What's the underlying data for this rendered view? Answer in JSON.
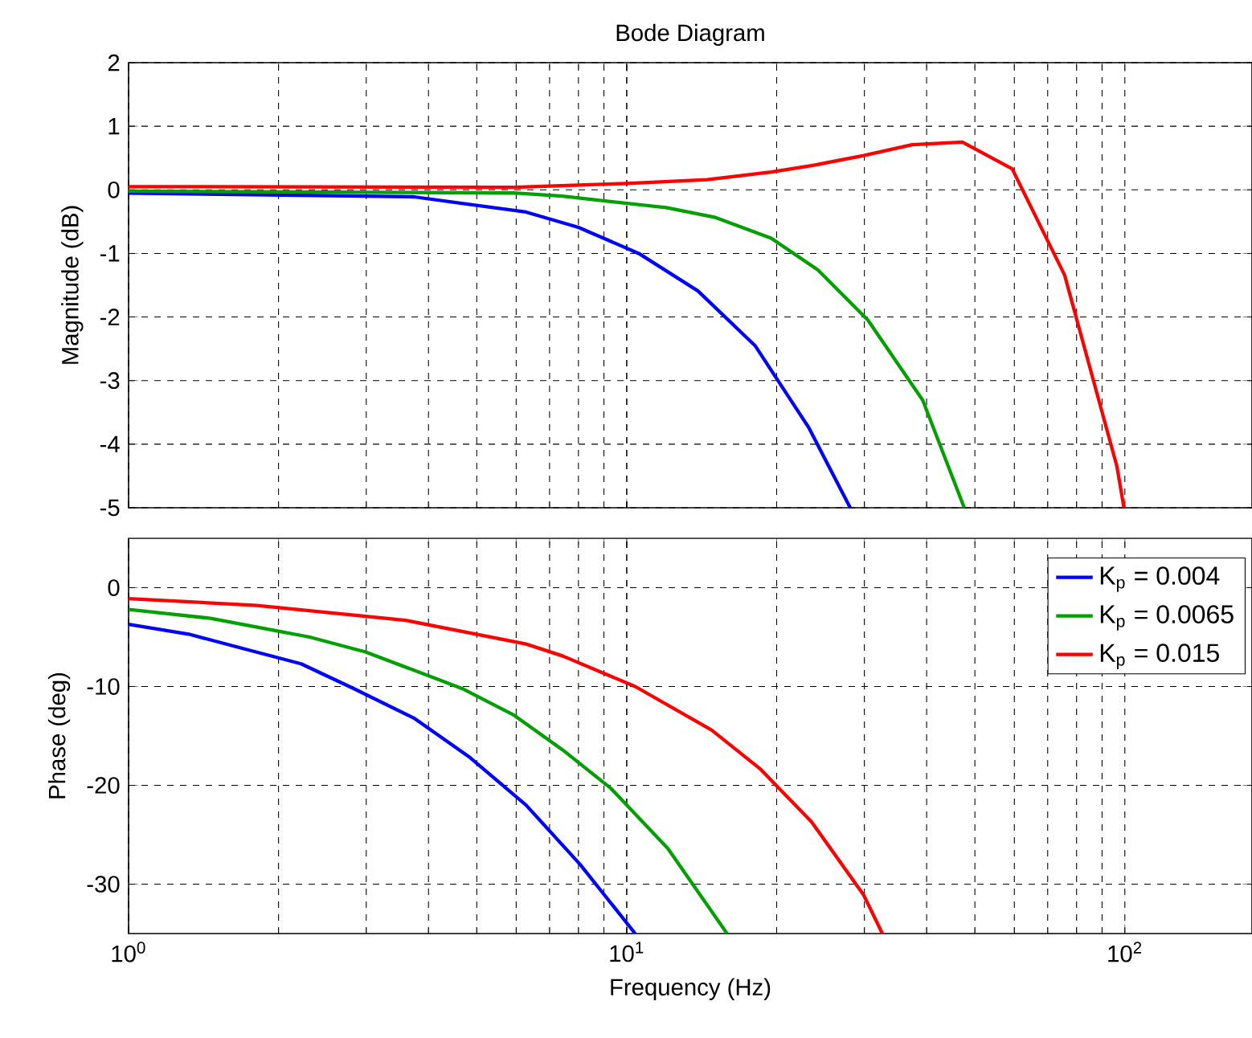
{
  "chart_data": [
    {
      "type": "line",
      "title": "Bode Diagram",
      "ylabel": "Magnitude (dB)",
      "log": "x",
      "grid": true,
      "marker": "none",
      "line_style": "solid",
      "tick_labels": "y",
      "xlim": [
        1,
        180
      ],
      "ylim": [
        -5,
        2
      ],
      "xticks": [
        {
          "value": 1,
          "label": null
        },
        {
          "value": 10,
          "label": null
        },
        {
          "value": 100,
          "label": null
        }
      ],
      "yticks": [
        -5,
        -4,
        -3,
        -2,
        -1,
        0,
        1,
        2
      ],
      "series": [
        {
          "color": "#0000ff",
          "x": [
            1,
            3.74,
            6.28,
            8.0,
            10.57,
            13.9,
            18.1,
            23.2,
            28.1
          ],
          "values": [
            -0.05,
            -0.11,
            -0.35,
            -0.59,
            -1.0,
            -1.59,
            -2.45,
            -3.74,
            -5.0
          ]
        },
        {
          "color": "#00a000",
          "x": [
            1,
            5.94,
            7.43,
            12.0,
            15.0,
            19.5,
            24.2,
            30.5,
            39.3,
            47.6
          ],
          "values": [
            -0.02,
            -0.05,
            -0.1,
            -0.28,
            -0.43,
            -0.76,
            -1.26,
            -2.05,
            -3.31,
            -5.0
          ]
        },
        {
          "color": "#ff0000",
          "x": [
            1,
            5.94,
            10,
            14.5,
            19.5,
            23.5,
            29.9,
            37.4,
            47.2,
            59.4,
            75.7,
            96.4,
            99.6
          ],
          "values": [
            0.05,
            0.04,
            0.1,
            0.16,
            0.28,
            0.38,
            0.54,
            0.71,
            0.75,
            0.33,
            -1.34,
            -4.35,
            -5.0
          ]
        }
      ]
    },
    {
      "type": "line",
      "xlabel": "Frequency  (Hz)",
      "ylabel": "Phase (deg)",
      "log": "x",
      "grid": true,
      "marker": "none",
      "line_style": "solid",
      "legend": "top right",
      "xlim": [
        1,
        180
      ],
      "ylim": [
        -35,
        5
      ],
      "xticks": [
        {
          "value": 1,
          "label": "10$^{0}$"
        },
        {
          "value": 10,
          "label": "10$^{1}$"
        },
        {
          "value": 100,
          "label": "10$^{2}$"
        }
      ],
      "yticks": [
        -30,
        -20,
        -10,
        0
      ],
      "series": [
        {
          "name": "K$_{p}$ = 0.004",
          "color": "#0000ff",
          "x": [
            1,
            1.32,
            1.71,
            2.22,
            2.83,
            3.74,
            4.85,
            6.28,
            8.06,
            10.4
          ],
          "values": [
            -3.7,
            -4.7,
            -6.2,
            -7.7,
            -10.2,
            -13.2,
            -17.2,
            -22.0,
            -28.0,
            -35
          ]
        },
        {
          "name": "K$_{p}$ = 0.0065",
          "color": "#00a000",
          "x": [
            1,
            1.46,
            1.95,
            2.31,
            2.99,
            4.67,
            5.94,
            7.43,
            9.29,
            12.1,
            15.9
          ],
          "values": [
            -2.2,
            -3.1,
            -4.3,
            -5.0,
            -6.5,
            -10.2,
            -12.9,
            -16.4,
            -20.3,
            -26.4,
            -35
          ]
        },
        {
          "name": "K$_{p}$ = 0.015",
          "color": "#ff0000",
          "x": [
            1,
            1.81,
            3.6,
            6.28,
            7.43,
            10.4,
            14.8,
            18.5,
            23.5,
            29.9,
            32.6
          ],
          "values": [
            -1.1,
            -1.8,
            -3.3,
            -5.7,
            -6.9,
            -10.0,
            -14.4,
            -18.3,
            -23.7,
            -31.1,
            -35
          ]
        }
      ]
    }
  ]
}
